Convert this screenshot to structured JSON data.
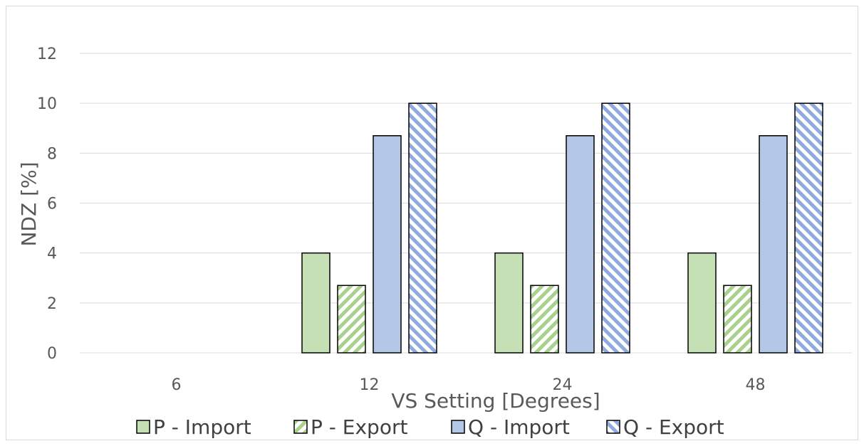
{
  "chart_data": {
    "type": "bar",
    "title": "",
    "xlabel": "VS Setting  [Degrees]",
    "ylabel": "NDZ [%]",
    "categories": [
      "6",
      "12",
      "24",
      "48"
    ],
    "ylim": [
      0,
      12
    ],
    "yticks": [
      "0",
      "2",
      "4",
      "6",
      "8",
      "10",
      "12"
    ],
    "grid": true,
    "legend_position": "bottom",
    "series": [
      {
        "name": "P - Import",
        "values": [
          null,
          4,
          4,
          4
        ],
        "color": "#c5e0b4",
        "pattern": "solid"
      },
      {
        "name": "P - Export",
        "values": [
          null,
          2.7,
          2.7,
          2.7
        ],
        "color": "#a9d18e",
        "pattern": "hatch-up"
      },
      {
        "name": "Q - Import",
        "values": [
          null,
          8.7,
          8.7,
          8.7
        ],
        "color": "#b4c7e7",
        "pattern": "solid"
      },
      {
        "name": "Q - Export",
        "values": [
          null,
          10,
          10,
          10
        ],
        "color": "#8faadc",
        "pattern": "hatch-down"
      }
    ]
  }
}
